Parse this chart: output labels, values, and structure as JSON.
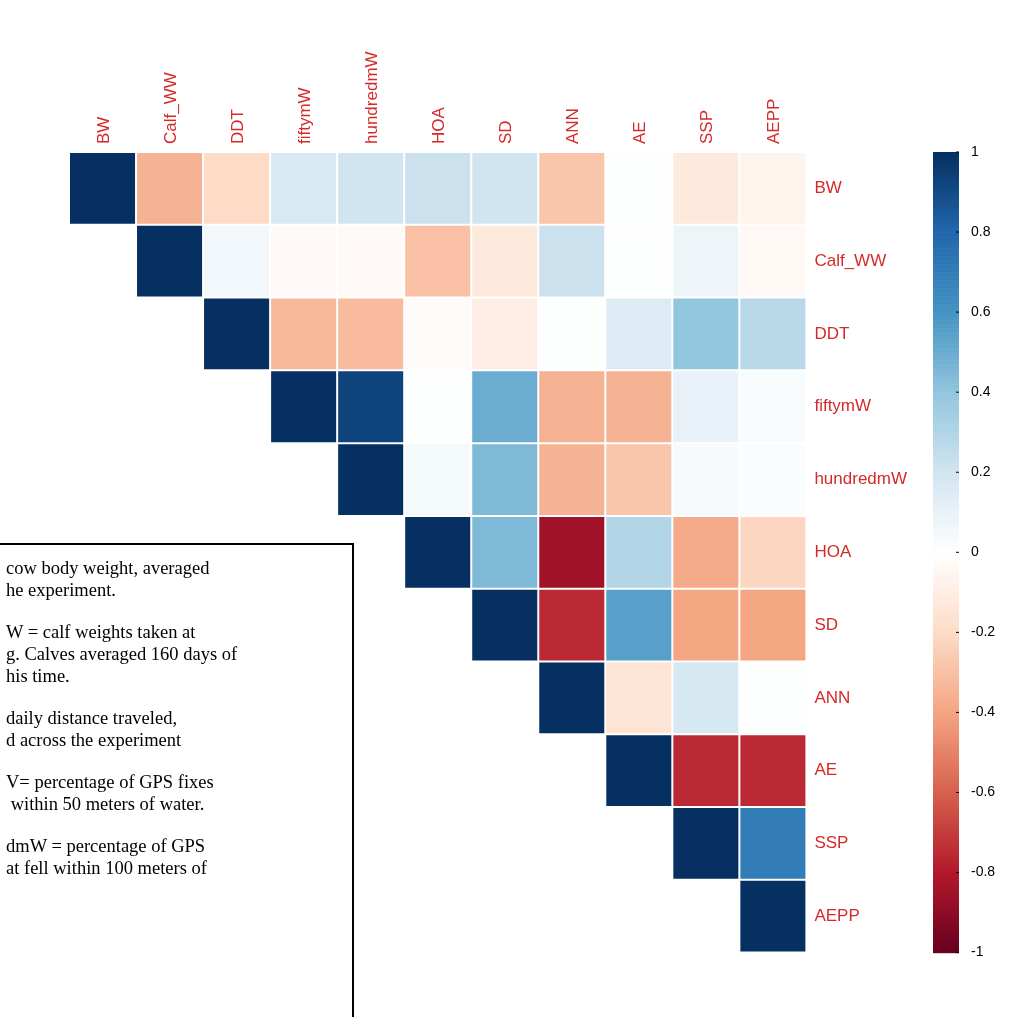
{
  "chart_data": {
    "type": "heatmap",
    "categories": [
      "BW",
      "Calf_WW",
      "DDT",
      "fiftymW",
      "hundredmW",
      "HOA",
      "SD",
      "ANN",
      "AE",
      "SSP",
      "AEPP"
    ],
    "y_categories": [
      "BW",
      "Calf_WW",
      "DDT",
      "fiftymW",
      "hundredmW",
      "HOA",
      "SD",
      "ANN",
      "AE",
      "SSP",
      "AEPP"
    ],
    "cells": [
      [
        1,
        -0.35,
        -0.2,
        0.17,
        0.2,
        0.22,
        0.2,
        -0.28,
        0.01,
        -0.12,
        -0.06
      ],
      [
        null,
        1,
        0.06,
        -0.03,
        -0.03,
        -0.3,
        -0.12,
        0.22,
        0.01,
        0.08,
        -0.04
      ],
      [
        null,
        null,
        1,
        -0.33,
        -0.32,
        -0.02,
        -0.1,
        0.01,
        0.15,
        0.4,
        0.28
      ],
      [
        null,
        null,
        null,
        1,
        0.93,
        0.01,
        0.5,
        -0.35,
        -0.35,
        0.1,
        0.03
      ],
      [
        null,
        null,
        null,
        null,
        1,
        0.05,
        0.45,
        -0.35,
        -0.28,
        0.04,
        0.02
      ],
      [
        null,
        null,
        null,
        null,
        null,
        1,
        0.45,
        -0.85,
        0.3,
        -0.38,
        -0.22
      ],
      [
        null,
        null,
        null,
        null,
        null,
        null,
        1,
        -0.75,
        0.55,
        -0.4,
        -0.4
      ],
      [
        null,
        null,
        null,
        null,
        null,
        null,
        null,
        1,
        -0.15,
        0.18,
        0.01
      ],
      [
        null,
        null,
        null,
        null,
        null,
        null,
        null,
        null,
        1,
        -0.75,
        -0.75
      ],
      [
        null,
        null,
        null,
        null,
        null,
        null,
        null,
        null,
        null,
        1,
        0.7
      ],
      [
        null,
        null,
        null,
        null,
        null,
        null,
        null,
        null,
        null,
        null,
        1
      ]
    ],
    "clim": [
      -1,
      1
    ],
    "cticks": [
      -1,
      -0.8,
      -0.6,
      -0.4,
      -0.2,
      0,
      0.2,
      0.4,
      0.6,
      0.8,
      1
    ],
    "annotations": [
      "cow body weight, averaged\nhe experiment.",
      "W = calf weights taken at\ng. Calves averaged 160 days of\nhis time.",
      "daily distance traveled,\nd across the experiment",
      "V= percentage of GPS fixes\n within 50 meters of water.",
      "dmW = percentage of GPS\nat fell within 100 meters of"
    ]
  }
}
